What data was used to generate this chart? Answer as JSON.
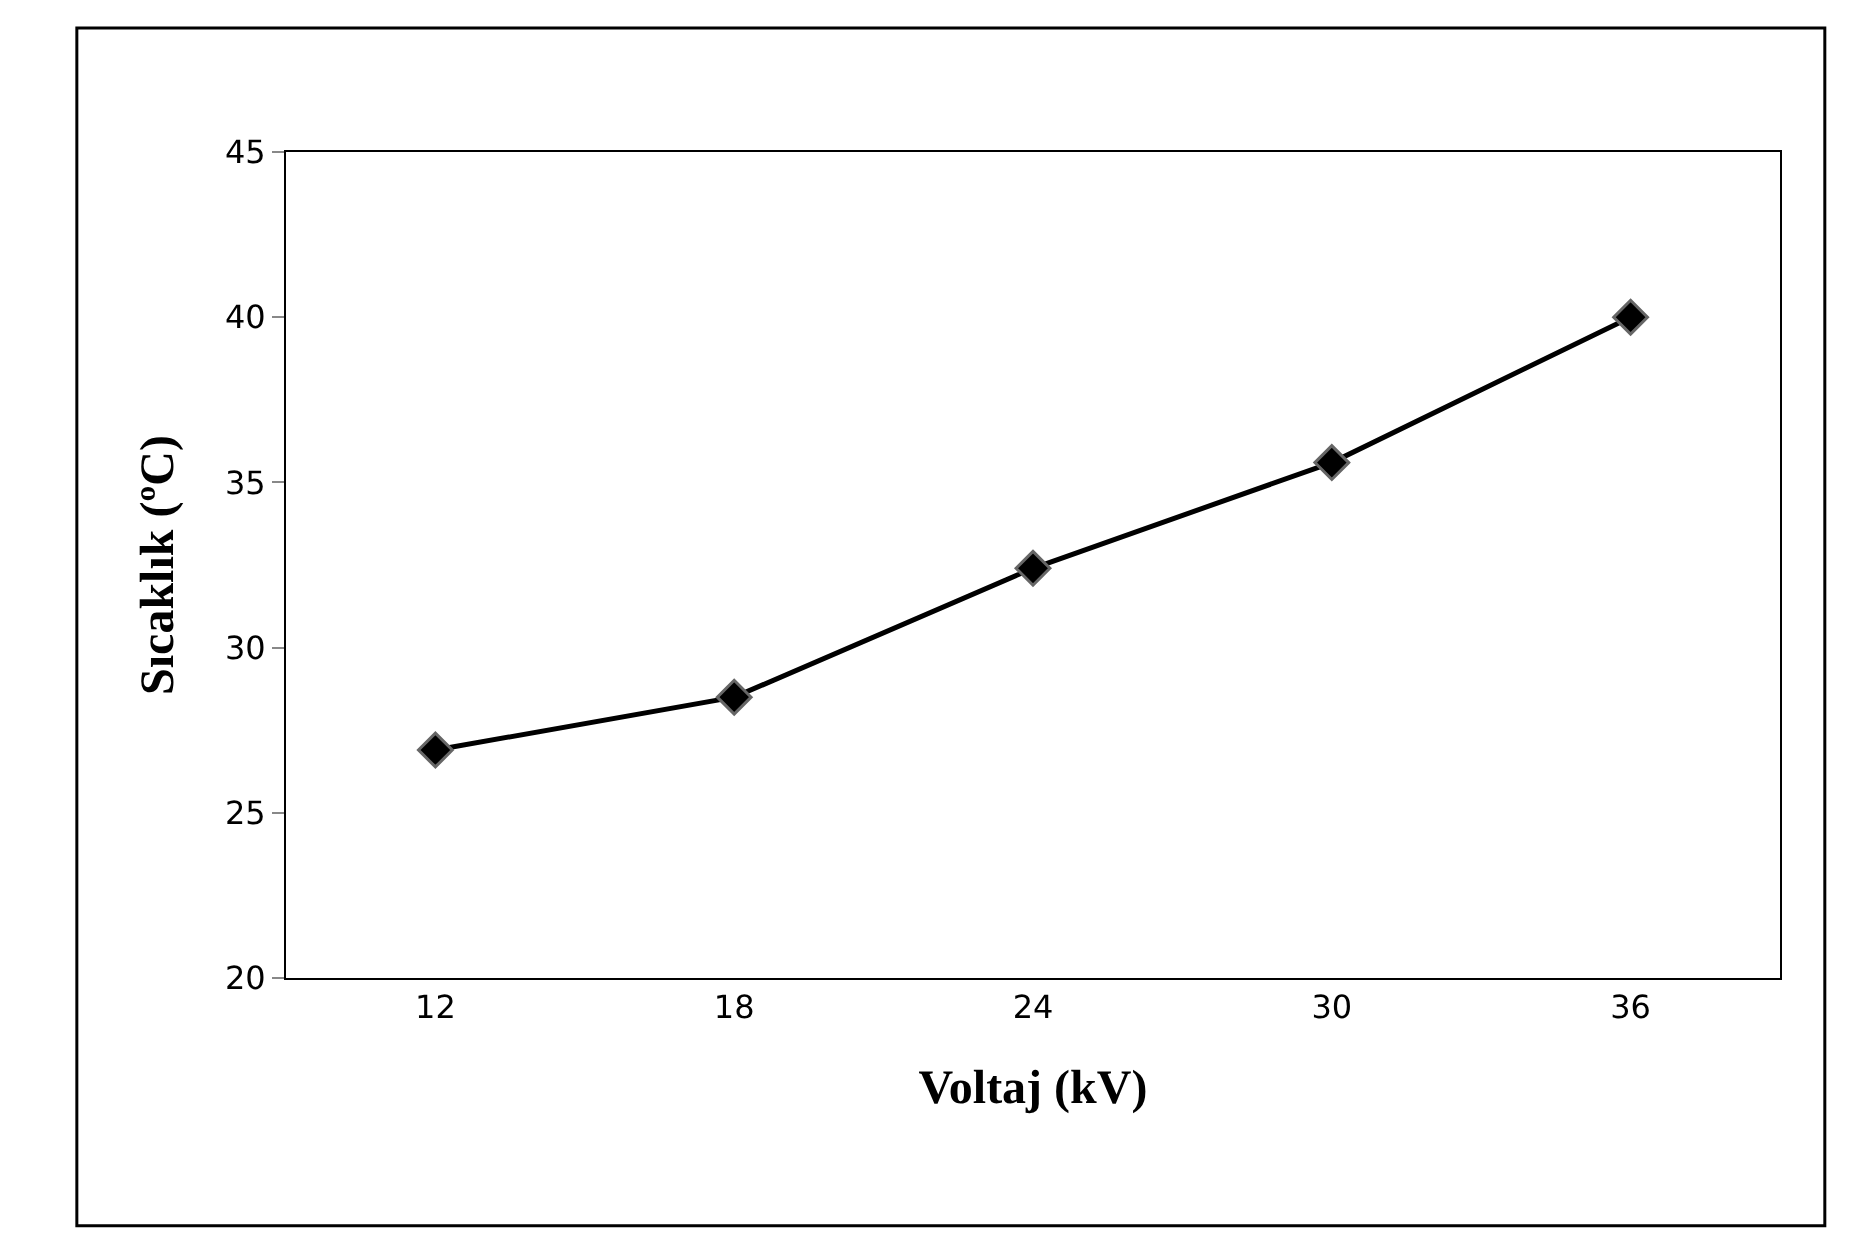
{
  "chart_data": {
    "type": "line",
    "xlabel": "Voltaj (kV)",
    "ylabel": "Sıcaklık (ºC)",
    "categories": [
      "12",
      "18",
      "24",
      "30",
      "36"
    ],
    "series": [
      {
        "color": "#000000",
        "values": [
          26.9,
          28.5,
          32.4,
          35.6,
          40.0
        ]
      }
    ],
    "ylim": [
      20,
      45
    ],
    "yticks": [
      20,
      25,
      30,
      35,
      40,
      45
    ],
    "legend": false,
    "marker": "diamond",
    "line_style": "solid"
  }
}
